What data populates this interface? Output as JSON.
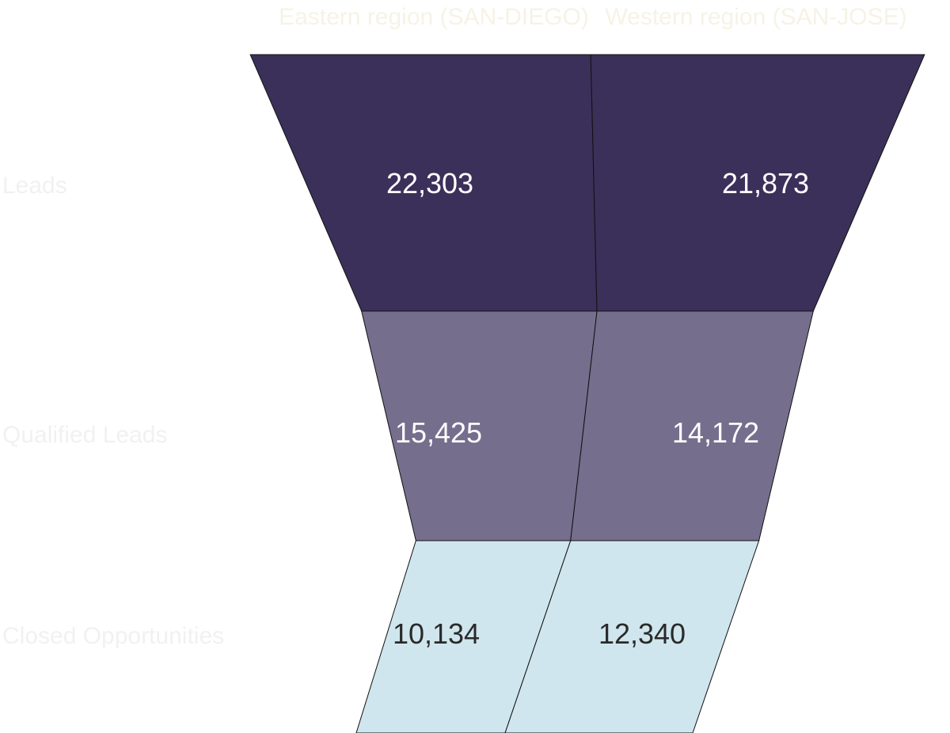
{
  "chart_data": {
    "type": "funnel",
    "title": "",
    "legend_position": "top",
    "series": [
      {
        "name": "Eastern region (SAN-DIEGO)",
        "values": [
          22303,
          15425,
          10134
        ],
        "labels": [
          "22,303",
          "15,425",
          "10,134"
        ]
      },
      {
        "name": "Western region (SAN-JOSE)",
        "values": [
          21873,
          14172,
          12340
        ],
        "labels": [
          "21,873",
          "14,172",
          "12,340"
        ]
      }
    ],
    "stages": [
      "Leads",
      "Qualified Leads",
      "Closed Opportunities"
    ],
    "colors": [
      "#3b3059",
      "#766e8d",
      "#d0e6ee"
    ],
    "value_label_colors": [
      "#ffffff",
      "#ffffff",
      "#2a2a2a"
    ]
  }
}
